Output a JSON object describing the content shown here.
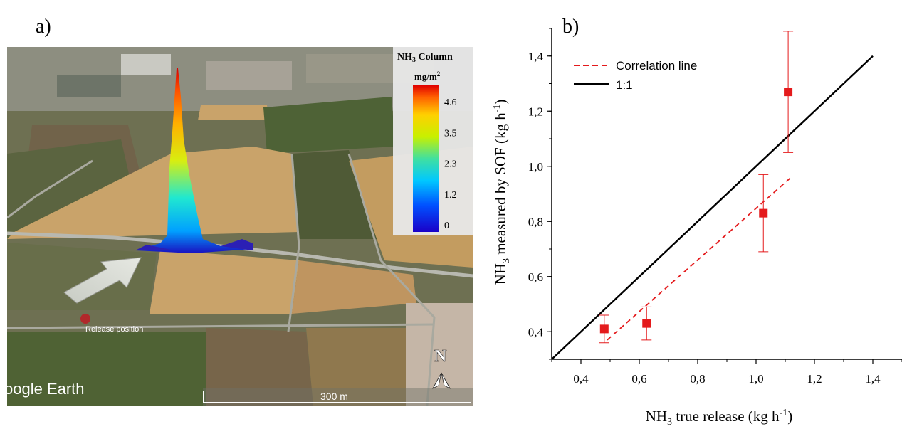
{
  "panels": {
    "a_label": "a)",
    "b_label": "b)"
  },
  "map": {
    "colorbar_title": "NH",
    "colorbar_title_sub": "3",
    "colorbar_title_rest": " Column",
    "colorbar_unit": "mg/m",
    "colorbar_unit_sup": "2",
    "colorbar_ticks": [
      "4.6",
      "3.5",
      "2.3",
      "1.2",
      "0"
    ],
    "release_label": "Release position",
    "watermark": "oogle Earth",
    "scale_label": "300 m",
    "north_label": "N",
    "colors": {
      "field": "#c9a36a",
      "dark_field": "#5f6b3d",
      "road": "#b8b8b0",
      "release_marker": "#b0282b"
    }
  },
  "chart_data": {
    "type": "scatter",
    "xlabel": "NH3 true release (kg h-1)",
    "ylabel": "NH3 measured by SOF (kg h-1)",
    "xlim": [
      0.3,
      1.5
    ],
    "ylim": [
      0.3,
      1.5
    ],
    "xticks": [
      "0,4",
      "0,6",
      "0,8",
      "1,0",
      "1,2",
      "1,4"
    ],
    "yticks": [
      "0,4",
      "0,6",
      "0,8",
      "1,0",
      "1,2",
      "1,4"
    ],
    "series": [
      {
        "kind": "points",
        "color": "#e41a1c",
        "x": [
          0.48,
          0.625,
          1.025,
          1.11
        ],
        "y": [
          0.41,
          0.43,
          0.83,
          1.27
        ],
        "err_low": [
          0.36,
          0.37,
          0.69,
          1.05
        ],
        "err_high": [
          0.46,
          0.49,
          0.97,
          1.49
        ]
      },
      {
        "name": "Correlation line",
        "kind": "line",
        "style": "dashed",
        "color": "#e41a1c",
        "x": [
          0.49,
          1.12
        ],
        "y": [
          0.37,
          0.96
        ]
      },
      {
        "name": "1:1",
        "kind": "line",
        "style": "solid",
        "color": "#000000",
        "x": [
          0.3,
          1.4
        ],
        "y": [
          0.3,
          1.4
        ]
      }
    ],
    "legend_position": "top-left",
    "grid": false
  }
}
